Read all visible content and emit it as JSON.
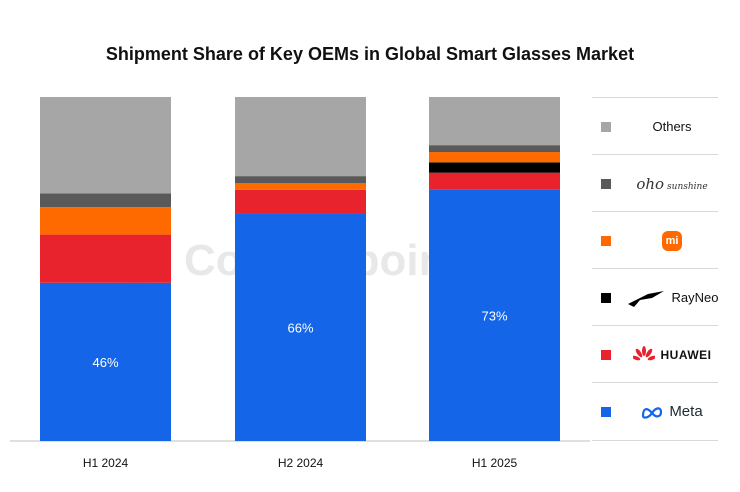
{
  "watermark": "Counterpoint",
  "chart_data": {
    "type": "bar",
    "stacked": true,
    "title": "Shipment Share of Key OEMs in Global Smart Glasses Market",
    "categories": [
      "H1 2024",
      "H2 2024",
      "H1 2025"
    ],
    "ylim": [
      0,
      100
    ],
    "series": [
      {
        "name": "Meta",
        "color": "#1565e8",
        "values": [
          46,
          66,
          73
        ],
        "data_labels": [
          "46%",
          "66%",
          "73%"
        ]
      },
      {
        "name": "HUAWEI",
        "color": "#e8232e",
        "values": [
          14,
          7,
          5
        ]
      },
      {
        "name": "RayNeo",
        "color": "#000000",
        "values": [
          0,
          0,
          3
        ]
      },
      {
        "name": "Xiaomi",
        "color": "#ff6a00",
        "values": [
          8,
          2,
          3
        ]
      },
      {
        "name": "oho sunshine",
        "color": "#595959",
        "values": [
          4,
          2,
          2
        ]
      },
      {
        "name": "Others",
        "color": "#a6a6a6",
        "values": [
          28,
          23,
          14
        ]
      }
    ]
  },
  "legend": {
    "items": [
      {
        "key": "others",
        "label": "Others",
        "color": "#a6a6a6"
      },
      {
        "key": "oho",
        "label": "oho",
        "sub": "sunshine",
        "color": "#595959"
      },
      {
        "key": "xiaomi",
        "label": "mi",
        "color": "#ff6a00"
      },
      {
        "key": "rayneo",
        "label": "RayNeo",
        "color": "#000000"
      },
      {
        "key": "huawei",
        "label": "HUAWEI",
        "color": "#e8232e"
      },
      {
        "key": "meta",
        "label": "Meta",
        "color": "#1565e8"
      }
    ]
  }
}
